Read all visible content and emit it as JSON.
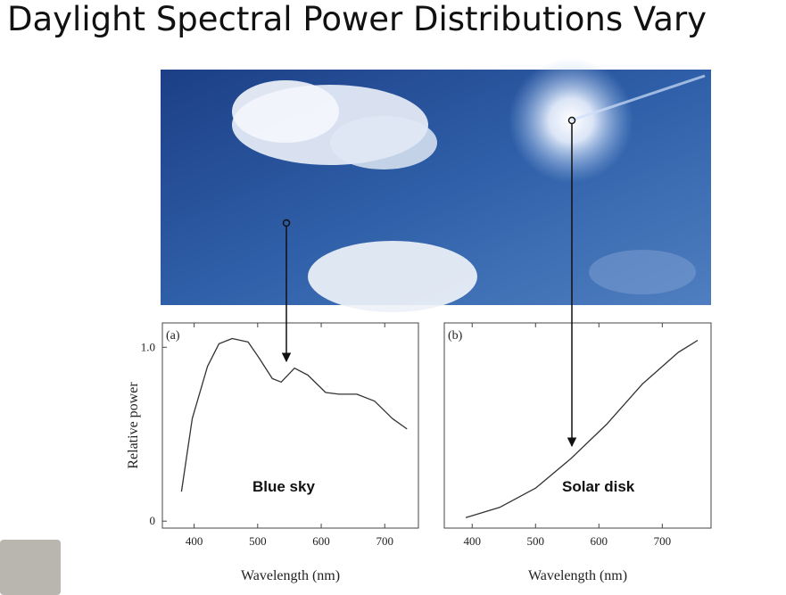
{
  "title": "Daylight Spectral Power Distributions Vary",
  "chart_data": [
    {
      "type": "line",
      "panel_label": "(a)",
      "annotation": "Blue sky",
      "x_label": "Wavelength (nm)",
      "y_label": "Relative power",
      "xlim": [
        350,
        753
      ],
      "ylim": [
        -0.04,
        1.14
      ],
      "xticks": [
        400,
        500,
        600,
        700
      ],
      "yticks": [
        0,
        {
          "value": 1,
          "label": "1.0"
        }
      ],
      "x": [
        380,
        397,
        421,
        439,
        460,
        485,
        502,
        523,
        537,
        558,
        579,
        607,
        628,
        656,
        684,
        712,
        735
      ],
      "series": [
        {
          "color": "#333333",
          "values": [
            0.17,
            0.59,
            0.89,
            1.02,
            1.05,
            1.03,
            0.94,
            0.82,
            0.8,
            0.88,
            0.84,
            0.74,
            0.73,
            0.73,
            0.69,
            0.59,
            0.53
          ]
        }
      ]
    },
    {
      "type": "line",
      "panel_label": "(b)",
      "annotation": "Solar disk",
      "x_label": "Wavelength (nm)",
      "xlim": [
        356,
        777
      ],
      "ylim": [
        -0.04,
        1.14
      ],
      "xticks": [
        400,
        500,
        600,
        700
      ],
      "x": [
        390,
        444,
        500,
        556,
        613,
        669,
        725,
        756
      ],
      "series": [
        {
          "color": "#333333",
          "values": [
            0.02,
            0.08,
            0.19,
            0.36,
            0.56,
            0.79,
            0.97,
            1.04
          ]
        }
      ]
    }
  ]
}
